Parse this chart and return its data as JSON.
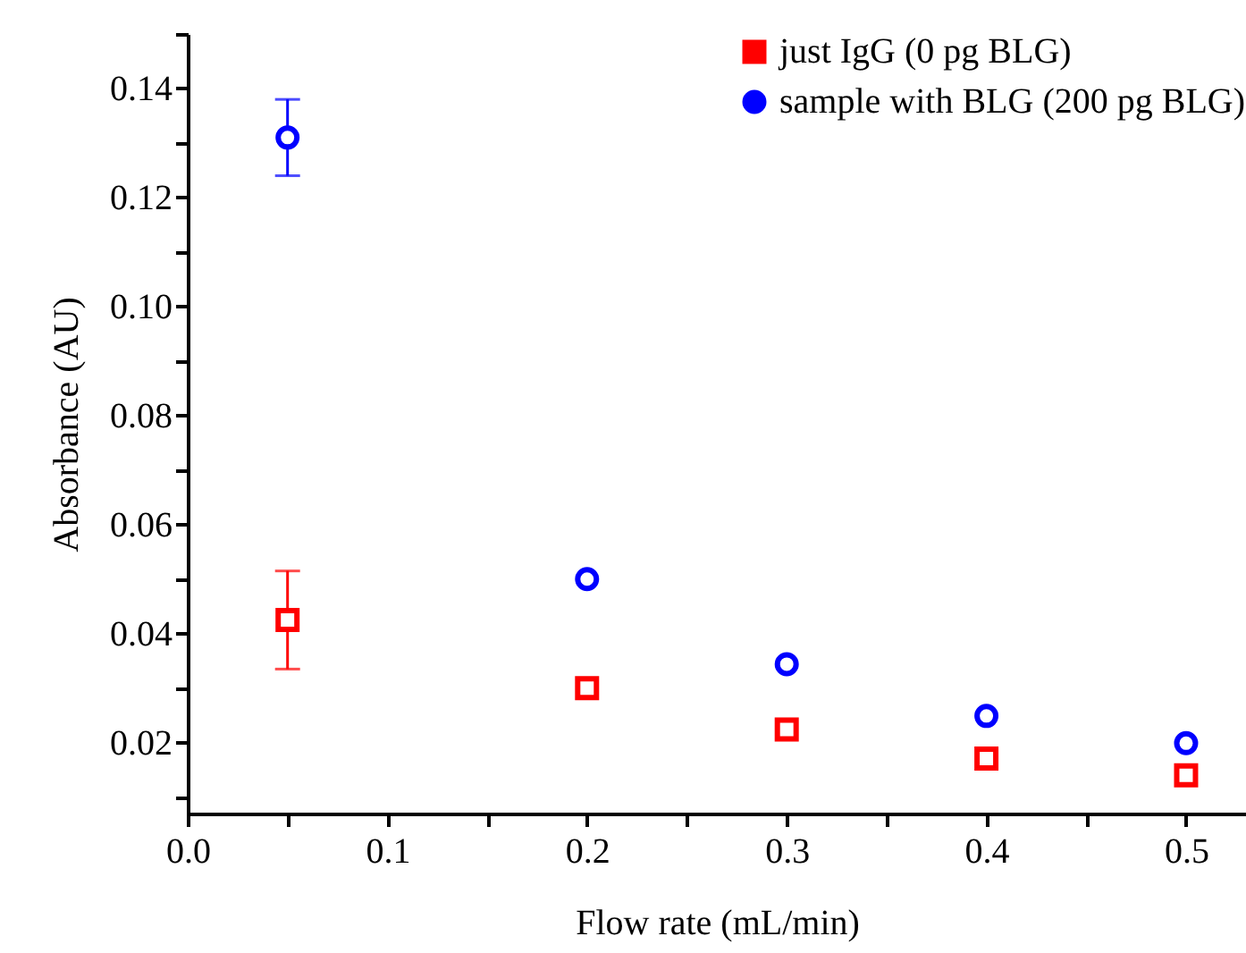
{
  "chart_data": {
    "type": "scatter",
    "xlabel": "Flow rate (mL/min)",
    "ylabel": "Absorbance (AU)",
    "x": [
      0.05,
      0.2,
      0.3,
      0.4,
      0.5
    ],
    "series": [
      {
        "name": "just IgG (0 pg BLG)",
        "color": "#ff0000",
        "marker": "square",
        "values": [
          0.0425,
          0.03,
          0.0224,
          0.0171,
          0.014
        ],
        "errors": [
          0.009,
          null,
          null,
          null,
          null
        ]
      },
      {
        "name": "sample with BLG (200 pg BLG)",
        "color": "#0000ff",
        "marker": "circle",
        "values": [
          0.131,
          0.05,
          0.0344,
          0.0249,
          0.0199
        ],
        "errors": [
          0.007,
          null,
          null,
          null,
          null
        ]
      }
    ],
    "xlim": [
      0,
      0.53
    ],
    "ylim": [
      0.007,
      0.15
    ],
    "xticks": [
      {
        "value": 0,
        "label": "0.0"
      },
      {
        "value": 0.05,
        "label": null
      },
      0.1,
      {
        "value": 0.15,
        "label": null
      },
      0.2,
      {
        "value": 0.25,
        "label": null
      },
      0.3,
      {
        "value": 0.35,
        "label": null
      },
      0.4,
      {
        "value": 0.45,
        "label": null
      },
      0.5
    ],
    "yticks": [
      {
        "value": 0.01,
        "label": null
      },
      0.02,
      {
        "value": 0.03,
        "label": null
      },
      0.04,
      {
        "value": 0.05,
        "label": null
      },
      0.06,
      {
        "value": 0.07,
        "label": null
      },
      0.08,
      {
        "value": 0.09,
        "label": null
      },
      {
        "value": 0.1,
        "label": "0.10"
      },
      {
        "value": 0.11,
        "label": null
      },
      0.12,
      {
        "value": 0.13,
        "label": null
      },
      0.14,
      {
        "value": 0.15,
        "label": null
      }
    ],
    "grid": false,
    "legend": "top right"
  }
}
